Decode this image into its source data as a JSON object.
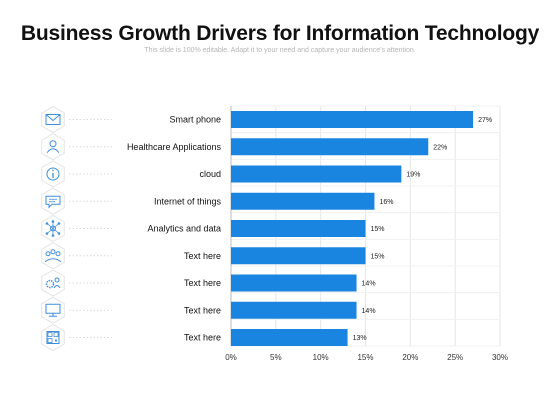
{
  "header": {
    "title": "Business Growth Drivers for Information Technology",
    "subtitle": "This slide is 100% editable. Adapt it to your need and capture your audience's attention."
  },
  "colors": {
    "bar": "#1a85e0",
    "icon": "#3f8fd8",
    "grid": "#e6e6e6"
  },
  "icons": [
    "email-icon",
    "user-icon",
    "info-icon",
    "chat-icon",
    "network-hub-icon",
    "team-icon",
    "gear-user-icon",
    "monitor-icon",
    "qr-code-icon"
  ],
  "chart_data": {
    "type": "bar",
    "orientation": "horizontal",
    "categories": [
      "Smart phone",
      "Healthcare Applications",
      "cloud",
      "Internet of things",
      "Analytics and data",
      "Text here",
      "Text here",
      "Text here",
      "Text here"
    ],
    "values": [
      27,
      22,
      19,
      16,
      15,
      15,
      14,
      14,
      13
    ],
    "data_labels": [
      "27%",
      "22%",
      "19%",
      "16%",
      "15%",
      "15%",
      "14%",
      "14%",
      "13%"
    ],
    "xlim": [
      0,
      30
    ],
    "xticks": [
      0,
      5,
      10,
      15,
      20,
      25,
      30
    ],
    "xtick_labels": [
      "0%",
      "5%",
      "10%",
      "15%",
      "20%",
      "25%",
      "30%"
    ],
    "grid": true,
    "legend": "none"
  }
}
